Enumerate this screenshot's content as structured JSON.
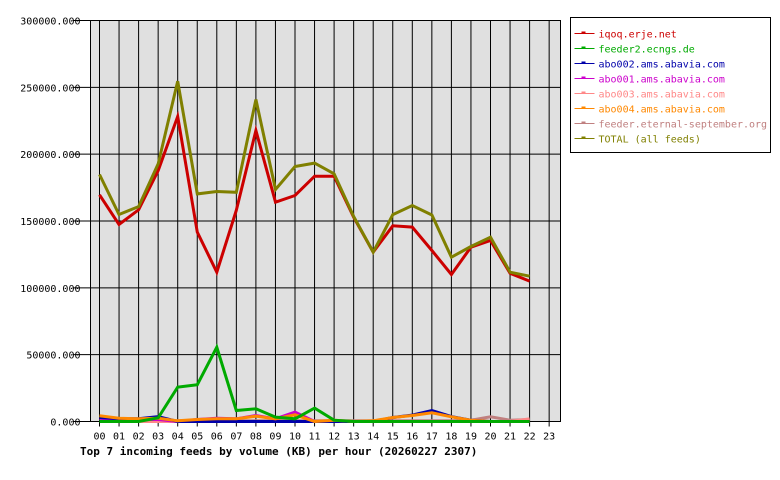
{
  "chart_data": {
    "type": "line",
    "title": "Top 7 incoming feeds by volume (KB) per hour (20260227 2307)",
    "xlabel": "",
    "ylabel": "",
    "ylim": [
      0,
      300000
    ],
    "yticks": [
      "0.000",
      "50000.000",
      "100000.000",
      "150000.000",
      "200000.000",
      "250000.000",
      "300000.000"
    ],
    "grid": true,
    "legend_position": "right",
    "categories": [
      "00",
      "01",
      "02",
      "03",
      "04",
      "05",
      "06",
      "07",
      "08",
      "09",
      "10",
      "11",
      "12",
      "13",
      "14",
      "15",
      "16",
      "17",
      "18",
      "19",
      "20",
      "21",
      "22",
      "23"
    ],
    "series": [
      {
        "name": "iqoq.erje.net",
        "color": "#cc0000",
        "values": [
          169600,
          147400,
          158400,
          187800,
          228200,
          141600,
          111700,
          158000,
          217700,
          164100,
          169100,
          183500,
          183500,
          153000,
          126700,
          146400,
          145400,
          127900,
          110000,
          130400,
          135400,
          110900,
          105000
        ]
      },
      {
        "name": "feeder2.ecngs.de",
        "color": "#00aa00",
        "values": [
          0,
          0,
          0,
          2800,
          25700,
          27500,
          55600,
          8200,
          9500,
          3300,
          2000,
          10000,
          1000,
          0,
          0,
          0,
          0,
          0,
          0,
          0,
          0,
          0,
          0
        ]
      },
      {
        "name": "abo002.ams.abavia.com",
        "color": "#0000aa",
        "values": [
          3000,
          2000,
          2000,
          3700,
          0,
          0,
          0,
          0,
          0,
          0,
          0,
          0,
          0,
          0,
          0,
          3000,
          4800,
          8200,
          3700,
          1000,
          0,
          0,
          0
        ]
      },
      {
        "name": "abo001.ams.abavia.com",
        "color": "#cc00cc",
        "values": [
          2500,
          1500,
          1500,
          1500,
          0,
          1500,
          2500,
          2000,
          4500,
          2000,
          7000,
          0,
          0,
          0,
          0,
          0,
          0,
          0,
          0,
          0,
          0,
          0,
          0
        ]
      },
      {
        "name": "abo003.ams.abavia.com",
        "color": "#ff8888",
        "values": [
          0,
          0,
          0,
          0,
          0,
          0,
          0,
          0,
          0,
          0,
          0,
          0,
          0,
          0,
          0,
          0,
          0,
          0,
          0,
          0,
          0,
          0,
          2000
        ]
      },
      {
        "name": "abo004.ams.abavia.com",
        "color": "#ff8800",
        "values": [
          4300,
          2500,
          2000,
          2500,
          500,
          1500,
          2000,
          2000,
          4000,
          2000,
          5000,
          0,
          1000,
          0,
          500,
          3000,
          4500,
          6500,
          3500,
          1000,
          0,
          0,
          0
        ]
      },
      {
        "name": "feeder.eternal-september.org",
        "color": "#c08080",
        "values": [
          500,
          500,
          500,
          500,
          500,
          500,
          500,
          500,
          500,
          500,
          500,
          500,
          500,
          500,
          500,
          500,
          500,
          500,
          500,
          1000,
          3500,
          1000,
          1500
        ]
      },
      {
        "name": "TOTAL (all feeds)",
        "color": "#808000",
        "values": [
          184800,
          154900,
          160800,
          192800,
          254600,
          170300,
          172100,
          171500,
          240900,
          173600,
          190800,
          193300,
          185300,
          153500,
          126700,
          154700,
          161600,
          154500,
          122900,
          130900,
          137900,
          111700,
          108700
        ]
      }
    ]
  }
}
